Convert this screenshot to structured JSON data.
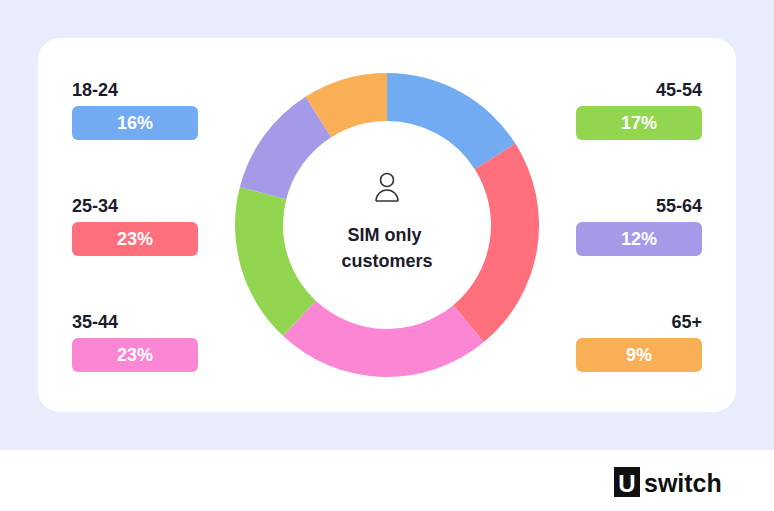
{
  "chart_data": {
    "type": "pie",
    "title": "SIM only customers",
    "categories": [
      "18-24",
      "25-34",
      "35-44",
      "45-54",
      "55-64",
      "65+"
    ],
    "values": [
      16,
      23,
      23,
      17,
      12,
      9
    ],
    "value_labels": [
      "16%",
      "23%",
      "23%",
      "17%",
      "12%",
      "9%"
    ],
    "colors": [
      "#72abf2",
      "#ff6f7c",
      "#fa86d4",
      "#92d64f",
      "#a59ae8",
      "#f8af55"
    ]
  },
  "brand": {
    "mark": "U",
    "text": "switch"
  }
}
